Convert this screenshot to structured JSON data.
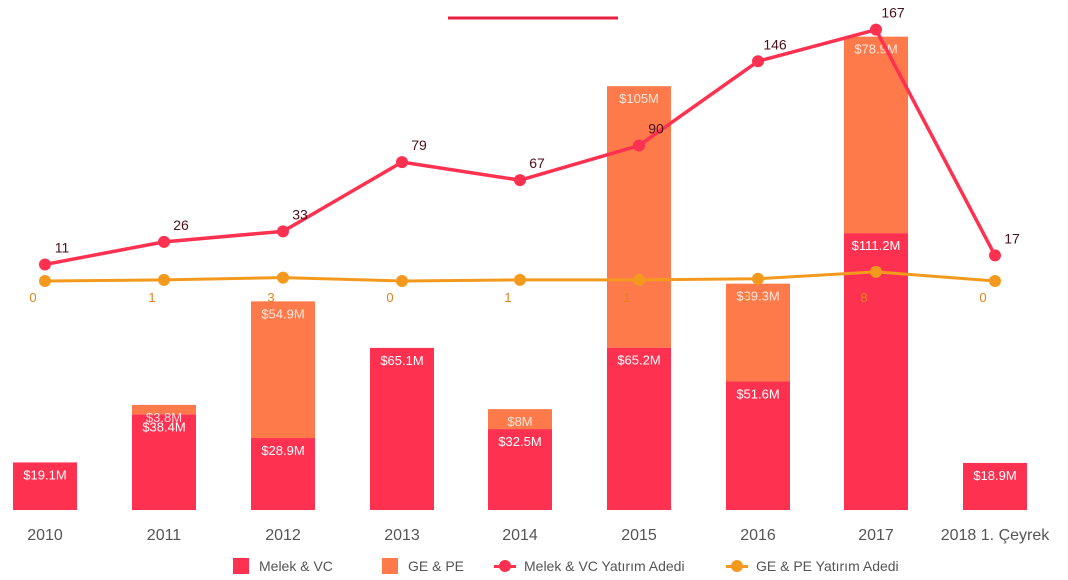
{
  "chart_data": {
    "type": "bar",
    "categories": [
      "2010",
      "2011",
      "2012",
      "2013",
      "2014",
      "2015",
      "2016",
      "2017",
      "2018 1. Çeyrek"
    ],
    "series": [
      {
        "name": "Melek & VC",
        "kind": "stacked-bar",
        "color": "#ff3150",
        "values": [
          19.1,
          38.4,
          28.9,
          65.1,
          32.5,
          65.2,
          51.6,
          111.2,
          18.9
        ],
        "labels": [
          "$19.1M",
          "$38.4M",
          "$28.9M",
          "$65.1M",
          "$32.5M",
          "$65.2M",
          "$51.6M",
          "$111.2M",
          "$18.9M"
        ]
      },
      {
        "name": "GE & PE",
        "kind": "stacked-bar",
        "color": "#ff7a4a",
        "values": [
          0,
          3.8,
          54.9,
          0,
          8,
          105,
          39.3,
          78.9,
          0
        ],
        "labels": [
          "",
          "$3.8M",
          "$54.9M",
          "",
          "$8M",
          "$105M",
          "$39.3M",
          "$78.9M",
          ""
        ]
      },
      {
        "name": "Melek & VC Yatırım Adedi",
        "kind": "line",
        "color": "#ff3150",
        "values": [
          11,
          26,
          33,
          79,
          67,
          90,
          146,
          167,
          17
        ],
        "labels": [
          "11",
          "26",
          "33",
          "79",
          "67",
          "90",
          "146",
          "167",
          "17"
        ]
      },
      {
        "name": "GE & PE Yatırım Adedi",
        "kind": "line",
        "color": "#f39a1e",
        "values": [
          0,
          1,
          3,
          0,
          1,
          1,
          2,
          8,
          0
        ],
        "labels": [
          "0",
          "1",
          "3",
          "0",
          "1",
          "1",
          "2",
          "8",
          "0"
        ]
      }
    ],
    "legend_position": "bottom",
    "grid": false
  },
  "legend": [
    {
      "label": "Melek & VC",
      "color": "#ff3150",
      "shape": "box"
    },
    {
      "label": "GE & PE",
      "color": "#ff7a4a",
      "shape": "box"
    },
    {
      "label": "Melek & VC Yatırım Adedi",
      "color": "#ff3150",
      "shape": "line"
    },
    {
      "label": "GE & PE Yatırım Adedi",
      "color": "#f39a1e",
      "shape": "line"
    }
  ]
}
